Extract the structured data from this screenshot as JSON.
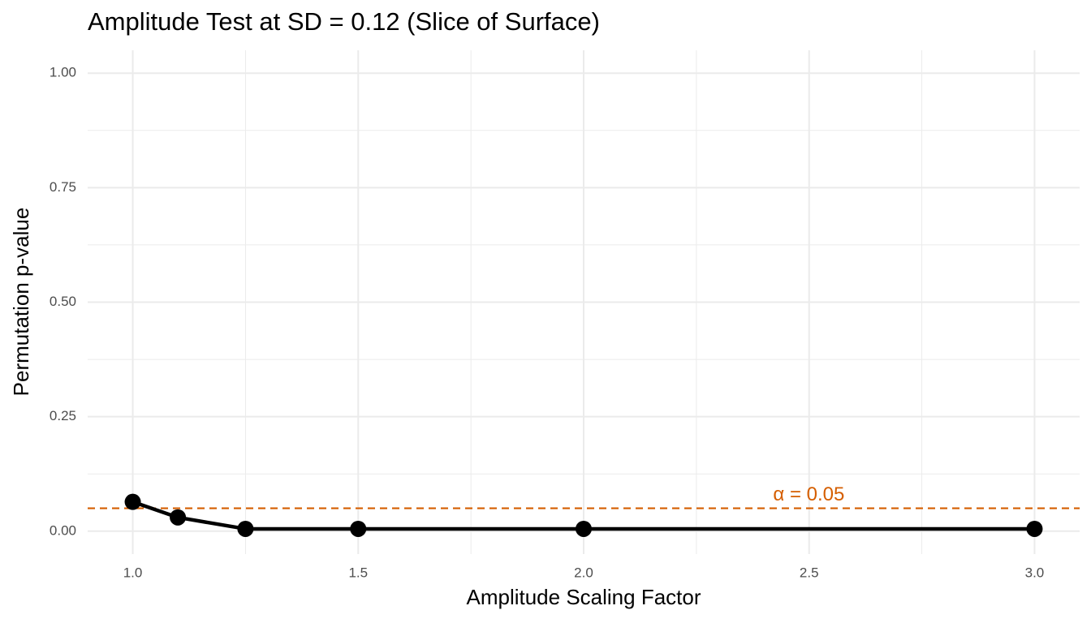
{
  "chart_data": {
    "type": "line",
    "title": "Amplitude Test at SD = 0.12 (Slice of Surface)",
    "x_label": "Amplitude Scaling Factor",
    "y_label": "Permutation p-value",
    "x": [
      1.0,
      1.1,
      1.25,
      1.5,
      2.0,
      3.0
    ],
    "series": [
      {
        "color": "#000000",
        "values": [
          0.064,
          0.03,
          0.005,
          0.005,
          0.005,
          0.005
        ]
      }
    ],
    "xlim": [
      0.9,
      3.1
    ],
    "ylim": [
      -0.05,
      1.05
    ],
    "xticks": [
      {
        "value": 1,
        "label": "1.0"
      },
      {
        "value": 1.5,
        "label": "1.5"
      },
      {
        "value": 2,
        "label": "2.0"
      },
      {
        "value": 2.5,
        "label": "2.5"
      },
      {
        "value": 3,
        "label": "3.0"
      }
    ],
    "yticks": [
      {
        "value": 0,
        "label": "0.00"
      },
      {
        "value": 0.25,
        "label": "0.25"
      },
      {
        "value": 0.5,
        "label": "0.50"
      },
      {
        "value": 0.75,
        "label": "0.75"
      },
      {
        "value": 1,
        "label": "1.00"
      }
    ],
    "grid": true,
    "hline": {
      "value": 0.05,
      "color": "#d55e00",
      "label": "α = 0.05"
    }
  }
}
